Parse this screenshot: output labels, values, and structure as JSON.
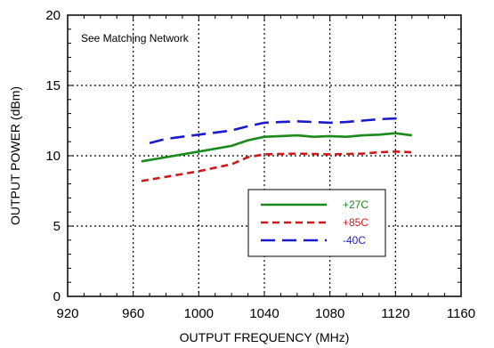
{
  "chart_data": {
    "type": "line",
    "xlabel": "OUTPUT FREQUENCY (MHz)",
    "ylabel": "OUTPUT POWER (dBm)",
    "xlim": [
      920,
      1160
    ],
    "ylim": [
      0,
      20
    ],
    "xticks": [
      920,
      960,
      1000,
      1040,
      1080,
      1120,
      1160
    ],
    "yticks": [
      0,
      5,
      10,
      15,
      20
    ],
    "xtick_labels": [
      "920",
      "960",
      "1000",
      "1040",
      "1080",
      "1120",
      "1160"
    ],
    "ytick_labels": [
      "0",
      "5",
      "10",
      "15",
      "20"
    ],
    "grid": true,
    "annotation": "See Matching Network",
    "legend_position": "right-center",
    "series": [
      {
        "name": "+27C",
        "color": "#1a8a1a",
        "style": "solid",
        "x": [
          965,
          980,
          1000,
          1020,
          1030,
          1040,
          1050,
          1060,
          1070,
          1080,
          1090,
          1100,
          1110,
          1120,
          1130
        ],
        "y": [
          9.6,
          9.9,
          10.3,
          10.7,
          11.1,
          11.35,
          11.4,
          11.45,
          11.35,
          11.4,
          11.35,
          11.45,
          11.5,
          11.6,
          11.45
        ]
      },
      {
        "name": "+85C",
        "color": "#cc1a1a",
        "style": "short-dash",
        "x": [
          965,
          980,
          1000,
          1020,
          1030,
          1040,
          1060,
          1080,
          1100,
          1110,
          1120,
          1130
        ],
        "y": [
          8.2,
          8.5,
          8.9,
          9.4,
          9.9,
          10.1,
          10.15,
          10.1,
          10.15,
          10.25,
          10.3,
          10.25
        ]
      },
      {
        "name": "-40C",
        "color": "#1a1acc",
        "style": "long-dash",
        "x": [
          970,
          980,
          1000,
          1020,
          1030,
          1040,
          1050,
          1060,
          1070,
          1080,
          1090,
          1100,
          1110,
          1120,
          1125
        ],
        "y": [
          10.9,
          11.2,
          11.5,
          11.8,
          12.1,
          12.35,
          12.4,
          12.45,
          12.4,
          12.35,
          12.4,
          12.5,
          12.6,
          12.65,
          12.6
        ]
      }
    ]
  }
}
